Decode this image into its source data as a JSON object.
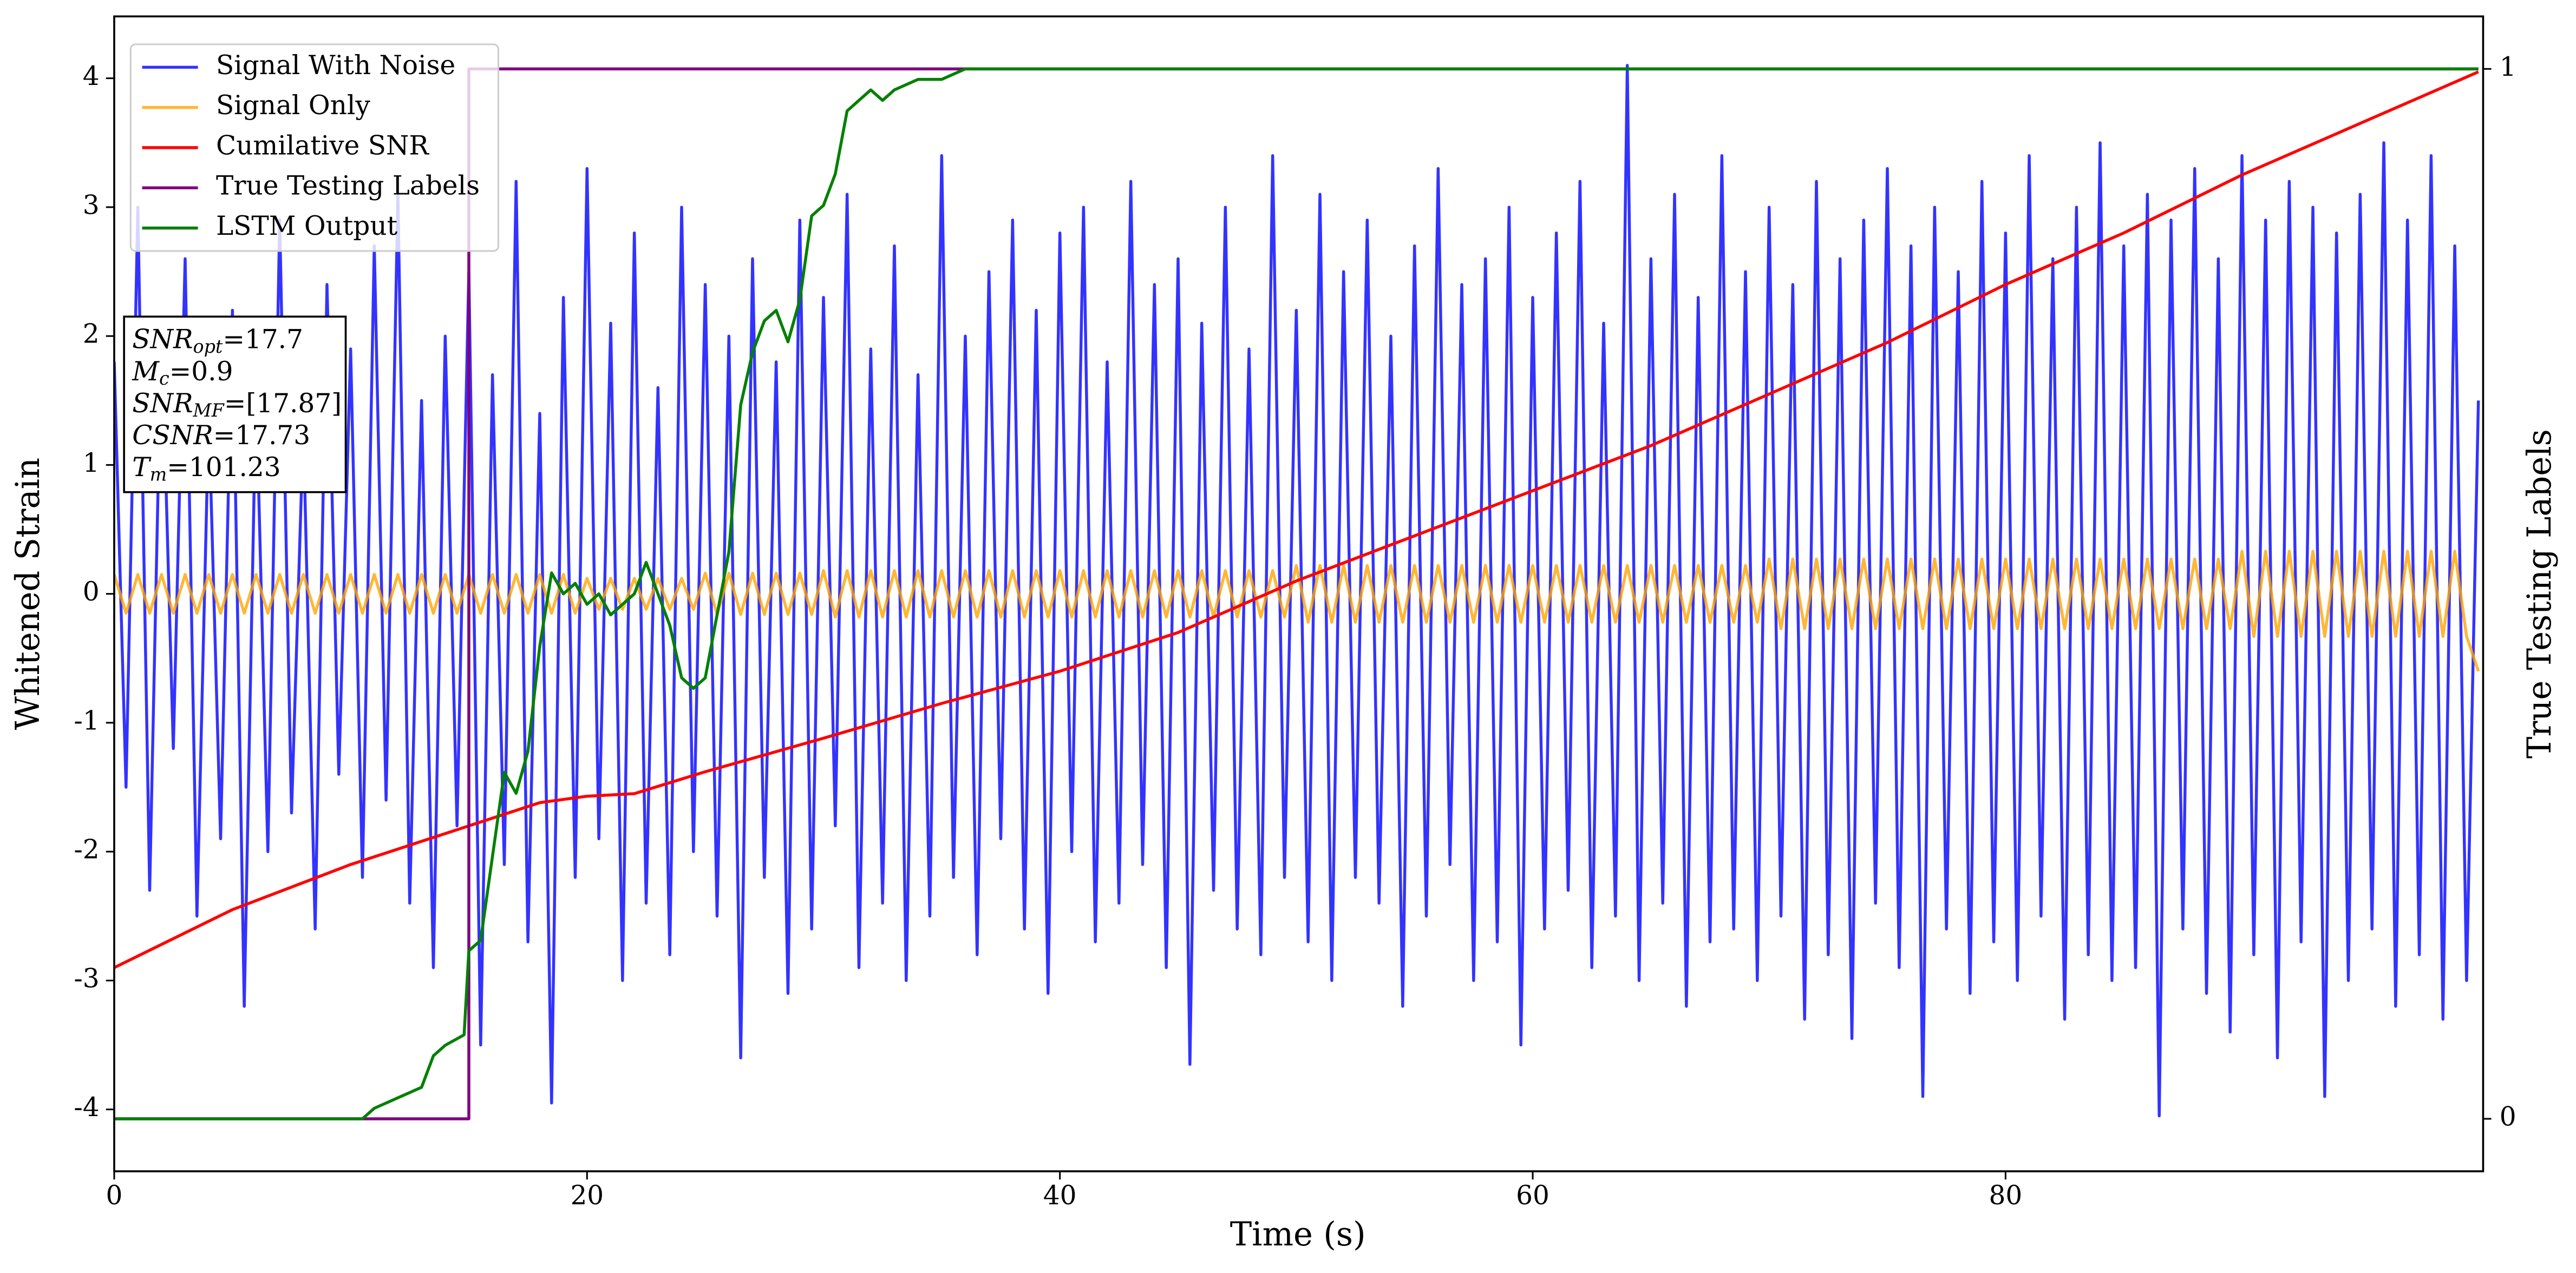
{
  "chart_data": {
    "type": "line",
    "xlabel": "Time (s)",
    "ylabel": "Whitened Strain",
    "y2label": "True Testing Labels",
    "xlim": [
      0,
      100.2
    ],
    "xticks": [
      0,
      20,
      40,
      60,
      80
    ],
    "ylim": [
      -4.48,
      4.48
    ],
    "yticks": [
      -4,
      -3,
      -2,
      -1,
      0,
      1,
      2,
      3,
      4
    ],
    "y2lim": [
      -0.05,
      1.05
    ],
    "y2ticks": [
      0,
      1
    ],
    "grid": false,
    "legend": "upper left",
    "annotation": [
      {
        "main": "SNR",
        "sub": "opt",
        "rest": "=17.7"
      },
      {
        "main": "M",
        "sub": "c",
        "rest": "=0.9"
      },
      {
        "main": "SNR",
        "sub": "MF",
        "rest": "=[17.87]"
      },
      {
        "main": "CSNR",
        "sub": null,
        "rest": "=17.73"
      },
      {
        "main": "T",
        "sub": "m",
        "rest": "=101.23"
      }
    ],
    "x": [
      0,
      0.5,
      1,
      1.5,
      2,
      2.5,
      3,
      3.5,
      4,
      4.5,
      5,
      5.5,
      6,
      6.5,
      7,
      7.5,
      8,
      8.5,
      9,
      9.5,
      10,
      10.5,
      11,
      11.5,
      12,
      12.5,
      13,
      13.5,
      14,
      14.5,
      15,
      15.5,
      16,
      16.5,
      17,
      17.5,
      18,
      18.5,
      19,
      19.5,
      20,
      20.5,
      21,
      21.5,
      22,
      22.5,
      23,
      23.5,
      24,
      24.5,
      25,
      25.5,
      26,
      26.5,
      27,
      27.5,
      28,
      28.5,
      29,
      29.5,
      30,
      30.5,
      31,
      31.5,
      32,
      32.5,
      33,
      33.5,
      34,
      34.5,
      35,
      35.5,
      36,
      36.5,
      37,
      37.5,
      38,
      38.5,
      39,
      39.5,
      40,
      40.5,
      41,
      41.5,
      42,
      42.5,
      43,
      43.5,
      44,
      44.5,
      45,
      45.5,
      46,
      46.5,
      47,
      47.5,
      48,
      48.5,
      49,
      49.5,
      50,
      50.5,
      51,
      51.5,
      52,
      52.5,
      53,
      53.5,
      54,
      54.5,
      55,
      55.5,
      56,
      56.5,
      57,
      57.5,
      58,
      58.5,
      59,
      59.5,
      60,
      60.5,
      61,
      61.5,
      62,
      62.5,
      63,
      63.5,
      64,
      64.5,
      65,
      65.5,
      66,
      66.5,
      67,
      67.5,
      68,
      68.5,
      69,
      69.5,
      70,
      70.5,
      71,
      71.5,
      72,
      72.5,
      73,
      73.5,
      74,
      74.5,
      75,
      75.5,
      76,
      76.5,
      77,
      77.5,
      78,
      78.5,
      79,
      79.5,
      80,
      80.5,
      81,
      81.5,
      82,
      82.5,
      83,
      83.5,
      84,
      84.5,
      85,
      85.5,
      86,
      86.5,
      87,
      87.5,
      88,
      88.5,
      89,
      89.5,
      90,
      90.5,
      91,
      91.5,
      92,
      92.5,
      93,
      93.5,
      94,
      94.5,
      95,
      95.5,
      96,
      96.5,
      97,
      97.5,
      98,
      98.5,
      99,
      99.5,
      100
    ],
    "series": [
      {
        "name": "Signal With Noise",
        "color": "#0000ff",
        "opacity": 0.8,
        "values": [
          1.8,
          -1.5,
          3.0,
          -2.3,
          2.1,
          -1.2,
          2.6,
          -2.5,
          1.4,
          -1.9,
          2.2,
          -3.2,
          1.6,
          -2.0,
          2.9,
          -1.7,
          1.3,
          -2.6,
          2.4,
          -1.4,
          1.9,
          -2.2,
          2.7,
          -1.6,
          3.1,
          -2.4,
          1.5,
          -2.9,
          2.0,
          -1.8,
          2.5,
          -3.5,
          1.7,
          -2.1,
          3.2,
          -2.7,
          1.4,
          -3.95,
          2.3,
          -2.2,
          3.3,
          -1.9,
          2.1,
          -3.0,
          2.8,
          -2.4,
          1.6,
          -2.8,
          3.0,
          -2.0,
          2.4,
          -2.5,
          2.0,
          -3.6,
          2.6,
          -2.2,
          1.8,
          -3.1,
          2.9,
          -2.6,
          2.3,
          -1.8,
          3.1,
          -2.9,
          1.9,
          -2.4,
          2.7,
          -3.0,
          1.7,
          -2.5,
          3.4,
          -2.2,
          2.0,
          -2.8,
          2.5,
          -1.9,
          2.9,
          -2.6,
          2.2,
          -3.1,
          2.8,
          -2.0,
          3.0,
          -2.7,
          1.8,
          -2.4,
          3.2,
          -2.1,
          2.4,
          -2.9,
          2.6,
          -3.65,
          2.1,
          -2.3,
          3.0,
          -2.6,
          1.9,
          -2.8,
          3.4,
          -2.2,
          2.2,
          -2.7,
          3.1,
          -3.0,
          2.5,
          -2.2,
          2.9,
          -2.4,
          2.0,
          -3.2,
          2.7,
          -2.5,
          3.3,
          -2.1,
          2.4,
          -3.0,
          2.6,
          -2.7,
          3.0,
          -3.5,
          2.3,
          -2.6,
          2.8,
          -2.3,
          3.2,
          -2.9,
          2.1,
          -2.5,
          4.1,
          -3.0,
          2.6,
          -2.4,
          3.1,
          -3.2,
          2.3,
          -2.7,
          3.4,
          -2.6,
          2.5,
          -3.0,
          3.0,
          -2.5,
          2.4,
          -3.3,
          3.2,
          -2.8,
          2.6,
          -3.45,
          2.9,
          -2.4,
          3.3,
          -2.9,
          2.7,
          -3.9,
          3.0,
          -2.6,
          2.5,
          -3.1,
          3.2,
          -2.7,
          2.8,
          -3.0,
          3.4,
          -2.5,
          2.6,
          -3.3,
          3.0,
          -2.8,
          3.5,
          -3.0,
          2.7,
          -2.9,
          3.1,
          -4.05,
          2.9,
          -2.6,
          3.3,
          -3.1,
          2.6,
          -3.4,
          3.4,
          -2.8,
          2.9,
          -3.6,
          3.2,
          -2.7,
          3.0,
          -3.9,
          2.8,
          -3.0,
          3.1,
          -2.6,
          3.5,
          -3.2,
          2.9,
          -2.8,
          3.4,
          -3.3,
          2.7,
          -3.0,
          1.5
        ]
      },
      {
        "name": "Signal Only",
        "color": "#ffa500",
        "opacity": 0.8,
        "values": [
          0.15,
          -0.15,
          0.15,
          -0.15,
          0.15,
          -0.15,
          0.15,
          -0.15,
          0.15,
          -0.15,
          0.15,
          -0.15,
          0.15,
          -0.15,
          0.15,
          -0.15,
          0.15,
          -0.15,
          0.15,
          -0.15,
          0.15,
          -0.15,
          0.15,
          -0.15,
          0.15,
          -0.15,
          0.15,
          -0.15,
          0.15,
          -0.15,
          0.15,
          -0.15,
          0.15,
          -0.15,
          0.15,
          -0.15,
          0.15,
          -0.15,
          0.15,
          -0.15,
          0.12,
          -0.12,
          0.12,
          -0.12,
          0.12,
          -0.12,
          0.12,
          -0.12,
          0.12,
          -0.12,
          0.16,
          -0.16,
          0.16,
          -0.16,
          0.16,
          -0.16,
          0.16,
          -0.16,
          0.16,
          -0.16,
          0.18,
          -0.18,
          0.18,
          -0.18,
          0.18,
          -0.18,
          0.18,
          -0.18,
          0.18,
          -0.18,
          0.18,
          -0.18,
          0.18,
          -0.18,
          0.18,
          -0.18,
          0.18,
          -0.18,
          0.18,
          -0.18,
          0.18,
          -0.18,
          0.18,
          -0.18,
          0.18,
          -0.18,
          0.18,
          -0.18,
          0.18,
          -0.18,
          0.18,
          -0.18,
          0.18,
          -0.18,
          0.18,
          -0.18,
          0.18,
          -0.18,
          0.18,
          -0.18,
          0.22,
          -0.22,
          0.22,
          -0.22,
          0.22,
          -0.22,
          0.22,
          -0.22,
          0.22,
          -0.22,
          0.22,
          -0.22,
          0.22,
          -0.22,
          0.22,
          -0.22,
          0.22,
          -0.22,
          0.22,
          -0.22,
          0.22,
          -0.22,
          0.22,
          -0.22,
          0.22,
          -0.22,
          0.22,
          -0.22,
          0.22,
          -0.22,
          0.22,
          -0.22,
          0.22,
          -0.22,
          0.22,
          -0.22,
          0.22,
          -0.22,
          0.22,
          -0.22,
          0.27,
          -0.27,
          0.27,
          -0.27,
          0.27,
          -0.27,
          0.27,
          -0.27,
          0.27,
          -0.27,
          0.27,
          -0.27,
          0.27,
          -0.27,
          0.27,
          -0.27,
          0.27,
          -0.27,
          0.27,
          -0.27,
          0.27,
          -0.27,
          0.27,
          -0.27,
          0.27,
          -0.27,
          0.27,
          -0.27,
          0.27,
          -0.27,
          0.27,
          -0.27,
          0.27,
          -0.27,
          0.27,
          -0.27,
          0.27,
          -0.27,
          0.27,
          -0.27,
          0.33,
          -0.33,
          0.33,
          -0.33,
          0.33,
          -0.33,
          0.33,
          -0.33,
          0.33,
          -0.33,
          0.33,
          -0.33,
          0.33,
          -0.33,
          0.33,
          -0.33,
          0.33,
          -0.33,
          0.33,
          -0.33,
          -0.6
        ]
      },
      {
        "name": "Cumilative SNR",
        "color": "#ff0000",
        "opacity": 1,
        "x": [
          0,
          5,
          10,
          15,
          18,
          20,
          22,
          25,
          30,
          35,
          40,
          45,
          50,
          55,
          60,
          65,
          70,
          75,
          80,
          85,
          90,
          95,
          100
        ],
        "values": [
          -2.9,
          -2.45,
          -2.1,
          -1.8,
          -1.62,
          -1.57,
          -1.55,
          -1.38,
          -1.12,
          -0.85,
          -0.6,
          -0.3,
          0.1,
          0.45,
          0.8,
          1.15,
          1.55,
          1.95,
          2.4,
          2.8,
          3.25,
          3.65,
          4.05
        ]
      },
      {
        "name": "True Testing Labels",
        "color": "#800080",
        "opacity": 1,
        "axis": "y2",
        "x": [
          0,
          15,
          15,
          100
        ],
        "values": [
          0,
          0,
          1,
          1
        ]
      },
      {
        "name": "LSTM Output",
        "color": "#008000",
        "opacity": 1,
        "axis": "y2",
        "x": [
          0,
          10.5,
          11,
          12,
          13,
          13.5,
          14,
          14.8,
          15,
          15.5,
          16,
          16.5,
          17,
          17.5,
          18,
          18.5,
          19,
          19.5,
          20,
          20.5,
          21,
          22,
          22.5,
          23,
          23.5,
          24,
          24.5,
          25,
          25.5,
          26,
          26.5,
          27,
          27.5,
          28,
          28.5,
          29,
          29.5,
          30,
          30.5,
          31,
          31.5,
          32,
          32.5,
          33,
          34,
          35,
          36,
          40,
          100
        ],
        "values": [
          0,
          0,
          0.01,
          0.02,
          0.03,
          0.06,
          0.07,
          0.08,
          0.16,
          0.17,
          0.25,
          0.33,
          0.31,
          0.35,
          0.45,
          0.52,
          0.5,
          0.51,
          0.49,
          0.5,
          0.48,
          0.5,
          0.53,
          0.5,
          0.47,
          0.42,
          0.41,
          0.42,
          0.48,
          0.54,
          0.68,
          0.73,
          0.76,
          0.77,
          0.74,
          0.78,
          0.86,
          0.87,
          0.9,
          0.96,
          0.97,
          0.98,
          0.97,
          0.98,
          0.99,
          0.99,
          1.0,
          1.0,
          1.0
        ]
      }
    ]
  }
}
